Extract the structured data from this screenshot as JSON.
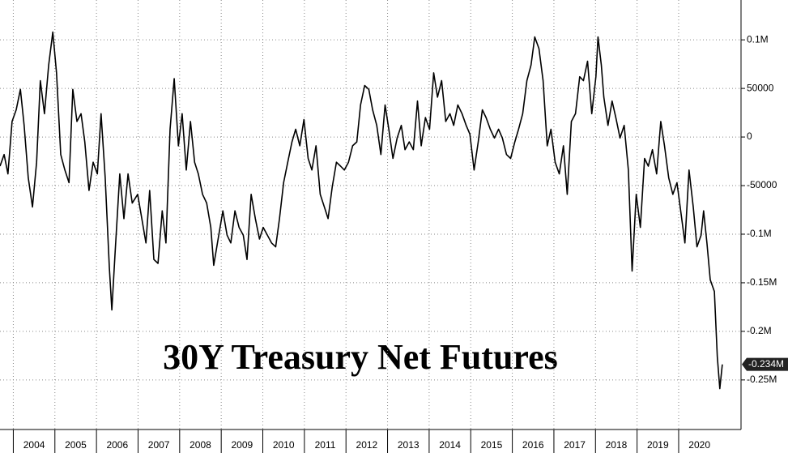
{
  "chart_data": {
    "type": "line",
    "title": "30Y Treasury Net Futures",
    "x": [
      2003.68,
      2003.78,
      2003.87,
      2003.97,
      2004.07,
      2004.17,
      2004.26,
      2004.36,
      2004.46,
      2004.56,
      2004.65,
      2004.75,
      2004.85,
      2004.95,
      2005.04,
      2005.14,
      2005.24,
      2005.34,
      2005.43,
      2005.53,
      2005.63,
      2005.72,
      2005.82,
      2005.92,
      2006.02,
      2006.11,
      2006.21,
      2006.31,
      2006.37,
      2006.45,
      2006.56,
      2006.66,
      2006.76,
      2006.86,
      2006.99,
      2007.09,
      2007.19,
      2007.28,
      2007.38,
      2007.48,
      2007.58,
      2007.67,
      2007.77,
      2007.87,
      2007.97,
      2008.06,
      2008.16,
      2008.26,
      2008.36,
      2008.45,
      2008.55,
      2008.65,
      2008.75,
      2008.82,
      2008.94,
      2009.04,
      2009.14,
      2009.23,
      2009.33,
      2009.43,
      2009.53,
      2009.62,
      2009.72,
      2009.82,
      2009.92,
      2010.01,
      2010.11,
      2010.21,
      2010.31,
      2010.4,
      2010.5,
      2010.6,
      2010.7,
      2010.79,
      2010.89,
      2010.99,
      2011.09,
      2011.18,
      2011.28,
      2011.38,
      2011.48,
      2011.57,
      2011.67,
      2011.77,
      2011.87,
      2011.96,
      2012.06,
      2012.16,
      2012.26,
      2012.35,
      2012.45,
      2012.55,
      2012.64,
      2012.74,
      2012.84,
      2012.94,
      2013.03,
      2013.13,
      2013.23,
      2013.33,
      2013.42,
      2013.52,
      2013.62,
      2013.72,
      2013.81,
      2013.91,
      2014.01,
      2014.11,
      2014.2,
      2014.3,
      2014.4,
      2014.5,
      2014.59,
      2014.69,
      2014.79,
      2014.89,
      2014.98,
      2015.08,
      2015.18,
      2015.28,
      2015.37,
      2015.47,
      2015.57,
      2015.67,
      2015.76,
      2015.86,
      2015.96,
      2016.06,
      2016.15,
      2016.25,
      2016.35,
      2016.45,
      2016.54,
      2016.64,
      2016.74,
      2016.84,
      2016.93,
      2017.03,
      2017.13,
      2017.23,
      2017.32,
      2017.42,
      2017.52,
      2017.62,
      2017.71,
      2017.81,
      2017.91,
      2018.01,
      2018.06,
      2018.14,
      2018.2,
      2018.3,
      2018.4,
      2018.49,
      2018.59,
      2018.69,
      2018.79,
      2018.88,
      2018.98,
      2019.08,
      2019.18,
      2019.27,
      2019.37,
      2019.47,
      2019.57,
      2019.66,
      2019.76,
      2019.86,
      2019.96,
      2020.05,
      2020.15,
      2020.25,
      2020.35,
      2020.44,
      2020.54,
      2020.6,
      2020.68,
      2020.76,
      2020.86,
      2020.93,
      2020.99,
      2021.05
    ],
    "series": [
      {
        "color": "#000000",
        "values": [
          -30000,
          -18000,
          -38000,
          16000,
          28000,
          49000,
          12000,
          -42000,
          -72000,
          -26000,
          58000,
          24000,
          74000,
          108000,
          66000,
          -18000,
          -34000,
          -47000,
          49000,
          16000,
          24000,
          -5000,
          -55000,
          -26000,
          -38000,
          24000,
          -42000,
          -134000,
          -178000,
          -118000,
          -38000,
          -84000,
          -38000,
          -68000,
          -59000,
          -84000,
          -109000,
          -55000,
          -126000,
          -130000,
          -76000,
          -109000,
          8000,
          60000,
          -9000,
          24000,
          -34000,
          16000,
          -26000,
          -38000,
          -59000,
          -68000,
          -93000,
          -132000,
          -101000,
          -76000,
          -101000,
          -109000,
          -76000,
          -93000,
          -101000,
          -126000,
          -59000,
          -84000,
          -105000,
          -93000,
          -101000,
          -109000,
          -113000,
          -84000,
          -47000,
          -26000,
          -5000,
          8000,
          -9000,
          18000,
          -22000,
          -34000,
          -9000,
          -59000,
          -72000,
          -84000,
          -51000,
          -26000,
          -30000,
          -34000,
          -26000,
          -9000,
          -5000,
          33000,
          53000,
          49000,
          28000,
          12000,
          -18000,
          33000,
          8000,
          -22000,
          -1000,
          12000,
          -13000,
          -5000,
          -13000,
          37000,
          -9000,
          20000,
          8000,
          66000,
          41000,
          58000,
          16000,
          24000,
          12000,
          33000,
          24000,
          12000,
          3000,
          -34000,
          -5000,
          28000,
          20000,
          8000,
          -1000,
          8000,
          -1000,
          -18000,
          -22000,
          -5000,
          8000,
          24000,
          58000,
          74000,
          103000,
          91000,
          58000,
          -9000,
          8000,
          -26000,
          -38000,
          -9000,
          -59000,
          16000,
          24000,
          62000,
          58000,
          78000,
          24000,
          62000,
          103000,
          74000,
          41000,
          12000,
          37000,
          20000,
          -1000,
          12000,
          -34000,
          -138000,
          -59000,
          -93000,
          -22000,
          -30000,
          -13000,
          -38000,
          16000,
          -9000,
          -42000,
          -59000,
          -47000,
          -76000,
          -109000,
          -34000,
          -72000,
          -113000,
          -101000,
          -76000,
          -109000,
          -147000,
          -159000,
          -226000,
          -259000,
          -234000
        ]
      }
    ],
    "xlim": [
      2003.68,
      2021.5
    ],
    "xticks": [
      2004,
      2005,
      2006,
      2007,
      2008,
      2009,
      2010,
      2011,
      2012,
      2013,
      2014,
      2015,
      2016,
      2017,
      2018,
      2019,
      2020
    ],
    "ylim": [
      -301000,
      141000
    ],
    "yticks": [
      {
        "value": 100000,
        "label": "0.1M"
      },
      50000,
      0,
      -50000,
      {
        "value": -100000,
        "label": "-0.1M"
      },
      {
        "value": -150000,
        "label": "-0.15M"
      },
      {
        "value": -200000,
        "label": "-0.2M"
      },
      {
        "value": -250000,
        "label": "-0.25M"
      }
    ],
    "annotations": [
      {
        "value": -234000,
        "label": "-0.234M"
      }
    ],
    "grid": true
  }
}
